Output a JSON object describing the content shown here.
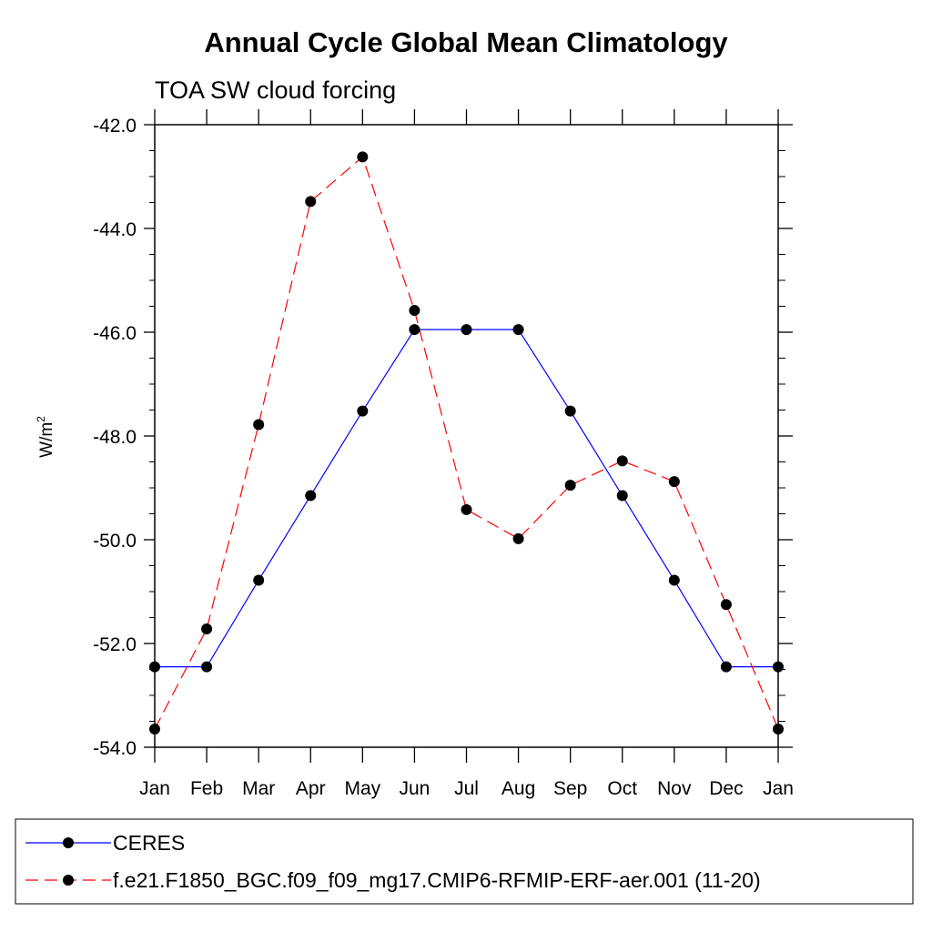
{
  "chart_data": {
    "type": "line",
    "title": "Annual Cycle Global Mean Climatology",
    "subtitle": "TOA SW cloud forcing",
    "xlabel": "",
    "ylabel_base": "W/m",
    "ylabel_sup": "2",
    "categories": [
      "Jan",
      "Feb",
      "Mar",
      "Apr",
      "May",
      "Jun",
      "Jul",
      "Aug",
      "Sep",
      "Oct",
      "Nov",
      "Dec",
      "Jan"
    ],
    "ylim": [
      -54.0,
      -42.0
    ],
    "y_ticks": [
      "-54.0",
      "-52.0",
      "-50.0",
      "-48.0",
      "-46.0",
      "-44.0",
      "-42.0"
    ],
    "grid": false,
    "legend_position": "bottom",
    "series": [
      {
        "name": "CERES",
        "color": "#0000ff",
        "style": "solid",
        "values": [
          -52.45,
          -52.45,
          -50.78,
          -49.15,
          -47.52,
          -45.95,
          -45.95,
          -45.95,
          -47.52,
          -49.15,
          -50.78,
          -52.45,
          -52.45
        ]
      },
      {
        "name": "f.e21.F1850_BGC.f09_f09_mg17.CMIP6-RFMIP-ERF-aer.001 (11-20)",
        "color": "#ff0000",
        "style": "dashed",
        "values": [
          -53.65,
          -51.72,
          -47.78,
          -43.48,
          -42.62,
          -45.58,
          -49.42,
          -49.98,
          -48.95,
          -48.48,
          -48.88,
          -51.25,
          -53.65
        ]
      }
    ]
  }
}
